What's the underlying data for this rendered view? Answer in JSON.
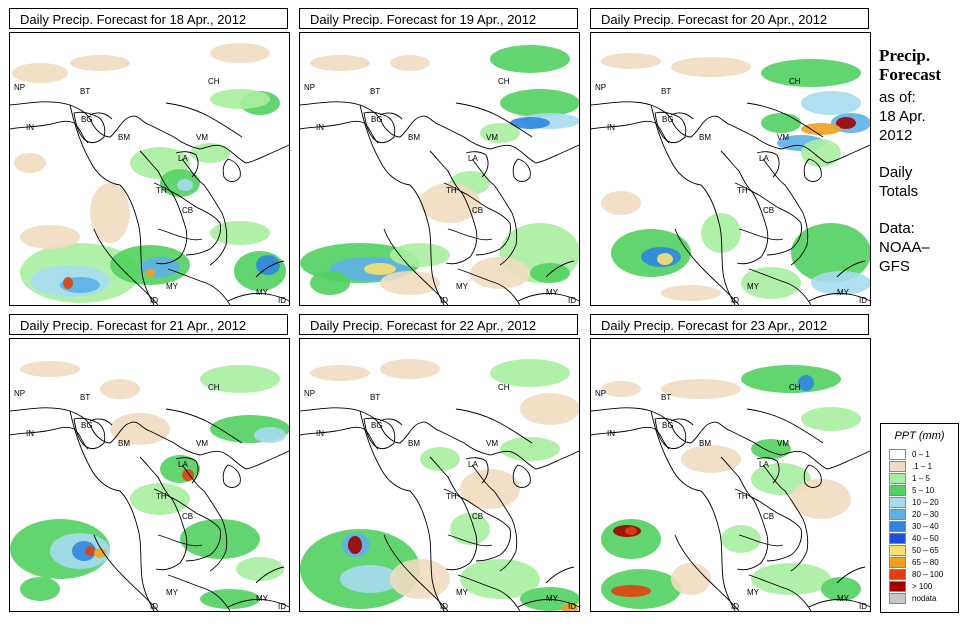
{
  "panels": [
    {
      "title": "Daily Precip. Forecast for  18 Apr., 2012"
    },
    {
      "title": "Daily Precip. Forecast for  19 Apr., 2012"
    },
    {
      "title": "Daily Precip. Forecast for  20 Apr., 2012"
    },
    {
      "title": "Daily Precip. Forecast for  21 Apr., 2012"
    },
    {
      "title": "Daily Precip. Forecast for  22 Apr., 2012"
    },
    {
      "title": "Daily Precip. Forecast for  23 Apr., 2012"
    }
  ],
  "country_labels": [
    "NP",
    "BT",
    "BG",
    "IN",
    "BM",
    "CH",
    "VM",
    "LA",
    "TH",
    "CB",
    "MY",
    "ID"
  ],
  "side": {
    "title_line1": "Precip.",
    "title_line2": "Forecast",
    "asof_line1": "as of:",
    "asof_line2": "18 Apr.",
    "asof_line3": "2012",
    "daily_line1": "Daily",
    "daily_line2": "Totals",
    "data_line1": "Data:",
    "data_line2": "NOAA–",
    "data_line3": "GFS"
  },
  "legend": {
    "title": "PPT (mm)",
    "items": [
      {
        "label": "0 – 1",
        "color": "#ffffff"
      },
      {
        "label": ".1 – 1",
        "color": "#f0dcc0"
      },
      {
        "label": "1 – 5",
        "color": "#a8eea0"
      },
      {
        "label": "5 – 10",
        "color": "#52d060"
      },
      {
        "label": "10 – 20",
        "color": "#a6dcf0"
      },
      {
        "label": "20 – 30",
        "color": "#5fb0e8"
      },
      {
        "label": "30 – 40",
        "color": "#2f86e0"
      },
      {
        "label": "40 – 50",
        "color": "#1f4fd6"
      },
      {
        "label": "50 – 65",
        "color": "#f6e070"
      },
      {
        "label": "65 – 80",
        "color": "#f0a020"
      },
      {
        "label": "80 – 100",
        "color": "#e04010"
      },
      {
        "label": "> 100",
        "color": "#a00000"
      },
      {
        "label": "nodata",
        "color": "#c8c8c8"
      }
    ]
  }
}
